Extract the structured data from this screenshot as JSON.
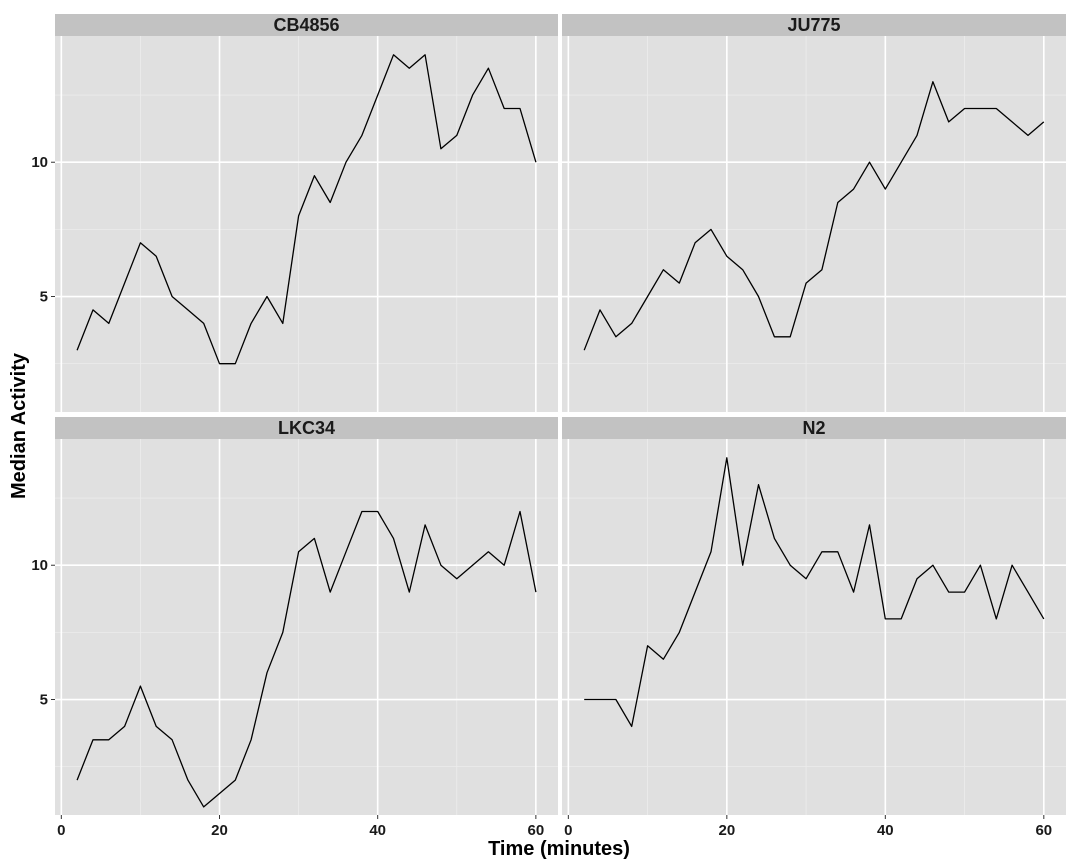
{
  "chart_data": {
    "type": "line",
    "layout": "facet-grid-2x2",
    "xlabel": "Time (minutes)",
    "ylabel": "Median Activity",
    "xlim": [
      -0.8,
      62.8
    ],
    "ylim": [
      0.7,
      14.7
    ],
    "x_ticks": [
      0,
      20,
      40,
      60
    ],
    "y_ticks": [
      5,
      10
    ],
    "grid": true,
    "colors": {
      "panel_bg": "#e0e0e0",
      "strip_bg": "#c2c2c2",
      "grid_major": "#ffffff",
      "line": "#000000"
    },
    "panels": [
      {
        "name": "CB4856",
        "x": [
          2,
          4,
          6,
          8,
          10,
          12,
          14,
          16,
          18,
          20,
          22,
          24,
          26,
          28,
          30,
          32,
          34,
          36,
          38,
          40,
          42,
          44,
          46,
          48,
          50,
          52,
          54,
          56,
          58,
          60
        ],
        "y": [
          3,
          4.5,
          4,
          5.5,
          7,
          6.5,
          5,
          4.5,
          4,
          2.5,
          2.5,
          4,
          5,
          4,
          8,
          9.5,
          8.5,
          10,
          11,
          12.5,
          14,
          13.5,
          14,
          10.5,
          11,
          12.5,
          13.5,
          12,
          12,
          10
        ]
      },
      {
        "name": "JU775",
        "x": [
          2,
          4,
          6,
          8,
          10,
          12,
          14,
          16,
          18,
          20,
          22,
          24,
          26,
          28,
          30,
          32,
          34,
          36,
          38,
          40,
          42,
          44,
          46,
          48,
          50,
          52,
          54,
          56,
          58,
          60
        ],
        "y": [
          3,
          4.5,
          3.5,
          4,
          5,
          6,
          5.5,
          7,
          7.5,
          6.5,
          6,
          5,
          3.5,
          3.5,
          5.5,
          6,
          8.5,
          9,
          10,
          9,
          10,
          11,
          13,
          11.5,
          12,
          12,
          12,
          11.5,
          11,
          11.5
        ]
      },
      {
        "name": "LKC34",
        "x": [
          2,
          4,
          6,
          8,
          10,
          12,
          14,
          16,
          18,
          20,
          22,
          24,
          26,
          28,
          30,
          32,
          34,
          36,
          38,
          40,
          42,
          44,
          46,
          48,
          50,
          52,
          54,
          56,
          58,
          60
        ],
        "y": [
          2,
          3.5,
          3.5,
          4,
          5.5,
          4,
          3.5,
          2,
          1,
          1.5,
          2,
          3.5,
          6,
          7.5,
          10.5,
          11,
          9,
          10.5,
          12,
          12,
          11,
          9,
          11.5,
          10,
          9.5,
          10,
          10.5,
          10,
          12,
          9
        ]
      },
      {
        "name": "N2",
        "x": [
          2,
          4,
          6,
          8,
          10,
          12,
          14,
          16,
          18,
          20,
          22,
          24,
          26,
          28,
          30,
          32,
          34,
          36,
          38,
          40,
          42,
          44,
          46,
          48,
          50,
          52,
          54,
          56,
          58,
          60
        ],
        "y": [
          5,
          5,
          5,
          4,
          7,
          6.5,
          7.5,
          9,
          10.5,
          14,
          10,
          13,
          11,
          10,
          9.5,
          10.5,
          10.5,
          9,
          11.5,
          8,
          8,
          9.5,
          10,
          9,
          9,
          10,
          8,
          10,
          9,
          8
        ]
      }
    ]
  }
}
